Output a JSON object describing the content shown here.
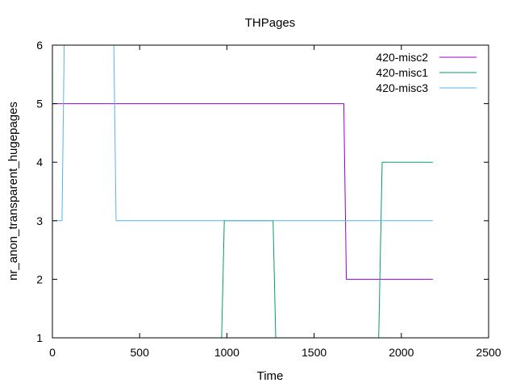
{
  "chart_data": {
    "type": "line",
    "title": "THPages",
    "xlabel": "Time",
    "ylabel": "nr_anon_transparent_hugepages",
    "xlim": [
      0,
      2500
    ],
    "ylim": [
      1,
      6
    ],
    "xticks": [
      0,
      500,
      1000,
      1500,
      2000,
      2500
    ],
    "yticks": [
      1,
      2,
      3,
      4,
      5,
      6
    ],
    "xtick_labels": [
      "0",
      "500",
      "1000",
      "1500",
      "2000",
      "2500"
    ],
    "ytick_labels": [
      "1",
      "2",
      "3",
      "4",
      "5",
      "6"
    ],
    "grid": false,
    "legend_position": "top-right",
    "series": [
      {
        "name": "420-misc2",
        "color": "#9400d3",
        "x": [
          0,
          1670,
          1685,
          2180
        ],
        "y": [
          5,
          5,
          2,
          2
        ]
      },
      {
        "name": "420-misc1",
        "color": "#009e73",
        "x": [
          970,
          985,
          1265,
          1280,
          1870,
          1890,
          2180
        ],
        "y": [
          1,
          3,
          3,
          1,
          1,
          4,
          4
        ]
      },
      {
        "name": "420-misc3",
        "color": "#56b4e9",
        "x": [
          0,
          55,
          70,
          350,
          365,
          2180
        ],
        "y": [
          3,
          3,
          6.5,
          6.5,
          3,
          3
        ]
      }
    ]
  }
}
